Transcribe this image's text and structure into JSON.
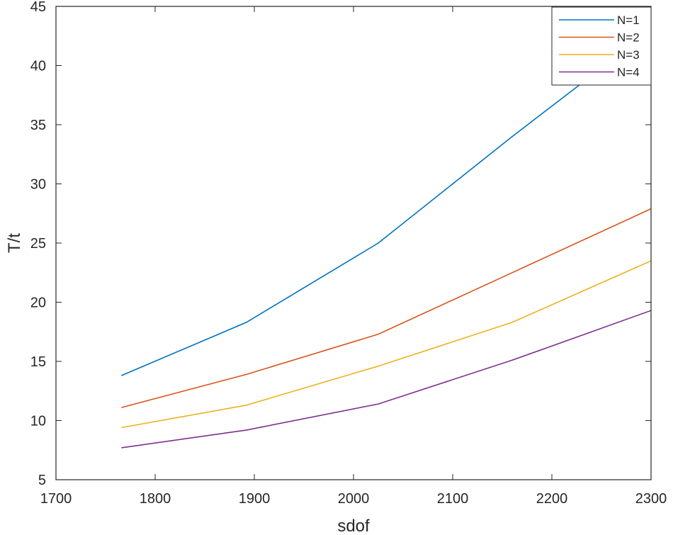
{
  "chart_data": {
    "type": "line",
    "title": "",
    "xlabel": "sdof",
    "ylabel": "T/t",
    "xlim": [
      1700,
      2300
    ],
    "ylim": [
      5,
      45
    ],
    "xticks": [
      1700,
      1800,
      1900,
      2000,
      2100,
      2200,
      2300
    ],
    "yticks": [
      5,
      10,
      15,
      20,
      25,
      30,
      35,
      40,
      45
    ],
    "x": [
      1766,
      1892,
      2025,
      2160,
      2300
    ],
    "grid": false,
    "legend_position": "top-right",
    "series": [
      {
        "name": "N=1",
        "color": "#0072BD",
        "values": [
          13.8,
          18.3,
          25.0,
          34.0,
          43.0
        ]
      },
      {
        "name": "N=2",
        "color": "#D95319",
        "values": [
          11.1,
          13.9,
          17.3,
          22.5,
          27.9
        ]
      },
      {
        "name": "N=3",
        "color": "#EDB120",
        "values": [
          9.4,
          11.3,
          14.6,
          18.3,
          23.5
        ]
      },
      {
        "name": "N=4",
        "color": "#7E2F8E",
        "values": [
          7.7,
          9.2,
          11.4,
          15.1,
          19.3
        ]
      }
    ]
  }
}
